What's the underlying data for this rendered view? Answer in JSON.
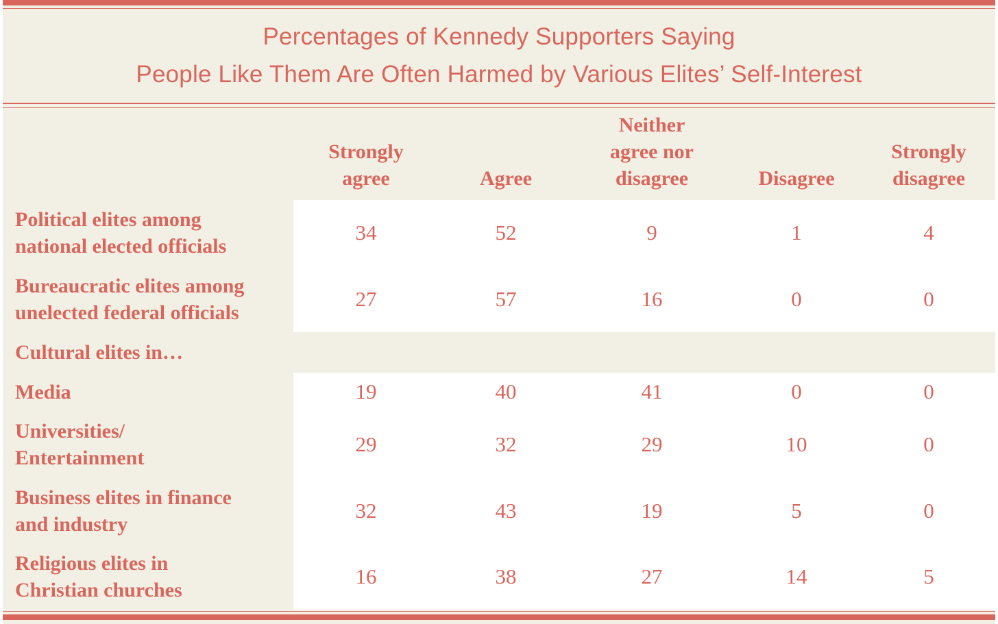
{
  "chart_data": {
    "type": "table",
    "title_lines": [
      "Percentages of Kennedy Supporters Saying",
      "People Like Them Are Often Harmed by Various Elites’ Self-Interest"
    ],
    "columns": [
      "Strongly agree",
      "Agree",
      "Neither agree nor disagree",
      "Disagree",
      "Strongly disagree"
    ],
    "column_lines": [
      [
        "Strongly",
        "agree"
      ],
      [
        "Agree"
      ],
      [
        "Neither",
        "agree nor",
        "disagree"
      ],
      [
        "Disagree"
      ],
      [
        "Strongly",
        "disagree"
      ]
    ],
    "rows": [
      {
        "label_lines": [
          "Political elites among",
          "national elected officials"
        ],
        "values": [
          34,
          52,
          9,
          1,
          4
        ]
      },
      {
        "label_lines": [
          "Bureaucratic elites among",
          "unelected federal officials"
        ],
        "values": [
          27,
          57,
          16,
          0,
          0
        ]
      },
      {
        "label_lines": [
          "Cultural elites in…"
        ],
        "values": null
      },
      {
        "label_lines": [
          "Media"
        ],
        "values": [
          19,
          40,
          41,
          0,
          0
        ]
      },
      {
        "label_lines": [
          "Universities/",
          "Entertainment"
        ],
        "values": [
          29,
          32,
          29,
          10,
          0
        ]
      },
      {
        "label_lines": [
          "Business elites in finance",
          "and industry"
        ],
        "values": [
          32,
          43,
          19,
          5,
          0
        ]
      },
      {
        "label_lines": [
          "Religious elites in",
          "Christian churches"
        ],
        "values": [
          16,
          38,
          27,
          14,
          5
        ]
      }
    ]
  },
  "colors": {
    "accent": "#d9665c",
    "background": "#f2f0e4",
    "data_area": "#ffffff"
  }
}
